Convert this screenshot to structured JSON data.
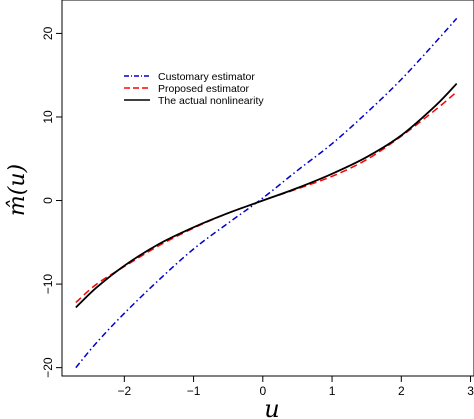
{
  "chart_data": {
    "type": "line",
    "title": "",
    "xlabel": "u",
    "ylabel": "m̂(u)",
    "xlim": [
      -2.9,
      3.05
    ],
    "ylim": [
      -21,
      24
    ],
    "xticks": [
      -2,
      -1,
      0,
      1,
      2,
      3
    ],
    "yticks": [
      -20,
      -10,
      0,
      10,
      20
    ],
    "xtick_labels": [
      "−2",
      "−1",
      "0",
      "1",
      "2",
      "3"
    ],
    "ytick_labels": [
      "−20",
      "−10",
      "0",
      "10",
      "20"
    ],
    "grid": false,
    "legend_position": "top-left",
    "series": [
      {
        "name": "Customary estimator",
        "color": "#0000cc",
        "style": "dashdot",
        "x": [
          -2.7,
          -2.4,
          -2.0,
          -1.5,
          -1.0,
          -0.5,
          0.0,
          0.5,
          1.0,
          1.5,
          2.0,
          2.5,
          2.8
        ],
        "y": [
          -20.0,
          -17.0,
          -13.5,
          -9.5,
          -5.8,
          -2.7,
          0.3,
          3.6,
          6.8,
          10.5,
          14.5,
          19.0,
          21.8
        ]
      },
      {
        "name": "Proposed estimator",
        "color": "#ff0000",
        "style": "dashed",
        "x": [
          -2.7,
          -2.4,
          -2.0,
          -1.5,
          -1.0,
          -0.5,
          0.0,
          0.5,
          1.0,
          1.5,
          2.0,
          2.5,
          2.8
        ],
        "y": [
          -12.2,
          -10.0,
          -7.9,
          -5.4,
          -3.3,
          -1.5,
          0.0,
          1.4,
          2.9,
          4.9,
          7.7,
          10.9,
          13.0
        ]
      },
      {
        "name": "The actual nonlinearity",
        "color": "#000000",
        "style": "solid",
        "x": [
          -2.7,
          -2.4,
          -2.0,
          -1.5,
          -1.0,
          -0.5,
          0.0,
          0.5,
          1.0,
          1.5,
          2.0,
          2.5,
          2.8
        ],
        "y": [
          -12.8,
          -10.4,
          -7.8,
          -5.2,
          -3.2,
          -1.5,
          0.0,
          1.5,
          3.2,
          5.2,
          7.8,
          11.4,
          14.0
        ]
      }
    ]
  }
}
